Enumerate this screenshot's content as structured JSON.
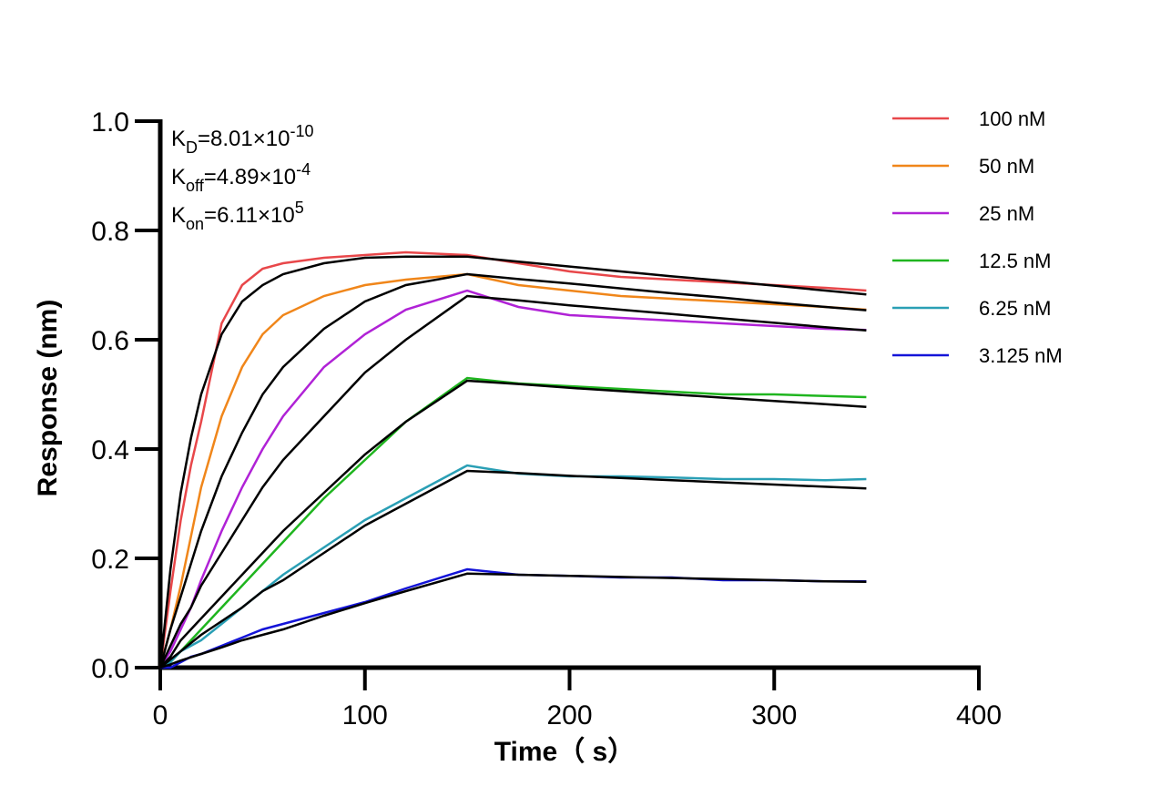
{
  "chart_data": {
    "type": "line",
    "x_label": "Time（ s）",
    "y_label": "Response (nm)",
    "annotations": [
      {
        "base": "K",
        "sub": "D",
        "text": "=8.01×10",
        "sup": "-10"
      },
      {
        "base": "K",
        "sub": "off",
        "text": "=4.89×10",
        "sup": "-4"
      },
      {
        "base": "K",
        "sub": "on",
        "text": "=6.11×10",
        "sup": "5"
      }
    ],
    "xlim": [
      0,
      400
    ],
    "xticks": [
      0,
      100,
      200,
      300,
      400
    ],
    "ylim": [
      0,
      1.0
    ],
    "yticks": [
      {
        "value": 0,
        "label": "0.0"
      },
      0.2,
      0.4,
      0.6,
      0.8,
      {
        "value": 1.0,
        "label": "1.0"
      }
    ],
    "x": [
      0,
      5,
      10,
      15,
      20,
      30,
      40,
      50,
      60,
      80,
      100,
      120,
      150,
      175,
      200,
      225,
      250,
      275,
      300,
      325,
      345
    ],
    "series": [
      {
        "name": "100 nM",
        "color": "#e8474a",
        "values": [
          0,
          0.14,
          0.27,
          0.37,
          0.45,
          0.63,
          0.7,
          0.73,
          0.74,
          0.75,
          0.755,
          0.76,
          0.755,
          0.74,
          0.725,
          0.715,
          0.71,
          0.705,
          0.7,
          0.695,
          0.69
        ]
      },
      {
        "name": "50 nM",
        "color": "#f0861a",
        "values": [
          0,
          0.07,
          0.15,
          0.24,
          0.33,
          0.46,
          0.55,
          0.61,
          0.645,
          0.68,
          0.7,
          0.71,
          0.72,
          0.7,
          0.69,
          0.68,
          0.675,
          0.67,
          0.665,
          0.66,
          0.655
        ]
      },
      {
        "name": "25 nM",
        "color": "#b022d6",
        "values": [
          0,
          0.03,
          0.07,
          0.11,
          0.16,
          0.25,
          0.33,
          0.4,
          0.46,
          0.55,
          0.61,
          0.655,
          0.69,
          0.66,
          0.645,
          0.64,
          0.635,
          0.63,
          0.625,
          0.62,
          0.618
        ]
      },
      {
        "name": "12.5 nM",
        "color": "#1fb51f",
        "values": [
          0,
          0.01,
          0.03,
          0.05,
          0.07,
          0.11,
          0.15,
          0.19,
          0.23,
          0.31,
          0.38,
          0.45,
          0.53,
          0.52,
          0.515,
          0.51,
          0.505,
          0.5,
          0.5,
          0.497,
          0.495
        ]
      },
      {
        "name": "6.25 nM",
        "color": "#2a9fb5",
        "values": [
          0,
          0.01,
          0.03,
          0.04,
          0.05,
          0.08,
          0.11,
          0.14,
          0.17,
          0.22,
          0.27,
          0.31,
          0.37,
          0.355,
          0.35,
          0.35,
          0.348,
          0.345,
          0.345,
          0.343,
          0.345
        ]
      },
      {
        "name": "3.125 nM",
        "color": "#1414d8",
        "values": [
          0,
          0.0,
          0.01,
          0.02,
          0.025,
          0.04,
          0.055,
          0.07,
          0.08,
          0.1,
          0.12,
          0.145,
          0.18,
          0.17,
          0.168,
          0.165,
          0.165,
          0.16,
          0.16,
          0.158,
          0.158
        ]
      }
    ],
    "fit_series": [
      {
        "color": "#000000",
        "values": [
          0,
          0.18,
          0.32,
          0.42,
          0.5,
          0.61,
          0.67,
          0.7,
          0.72,
          0.74,
          0.75,
          0.752,
          0.752,
          0.743,
          0.734,
          0.725,
          0.716,
          0.708,
          0.699,
          0.69,
          0.683
        ]
      },
      {
        "color": "#000000",
        "values": [
          0,
          0.07,
          0.13,
          0.19,
          0.25,
          0.35,
          0.43,
          0.5,
          0.55,
          0.62,
          0.67,
          0.7,
          0.72,
          0.711,
          0.703,
          0.694,
          0.685,
          0.677,
          0.668,
          0.66,
          0.654
        ]
      },
      {
        "color": "#000000",
        "values": [
          0,
          0.04,
          0.08,
          0.11,
          0.15,
          0.21,
          0.27,
          0.33,
          0.38,
          0.46,
          0.54,
          0.6,
          0.68,
          0.672,
          0.663,
          0.655,
          0.647,
          0.639,
          0.631,
          0.623,
          0.617
        ]
      },
      {
        "color": "#000000",
        "values": [
          0,
          0.02,
          0.05,
          0.07,
          0.09,
          0.13,
          0.17,
          0.21,
          0.25,
          0.32,
          0.39,
          0.45,
          0.525,
          0.519,
          0.512,
          0.506,
          0.5,
          0.494,
          0.488,
          0.482,
          0.477
        ]
      },
      {
        "color": "#000000",
        "values": [
          0,
          0.015,
          0.03,
          0.045,
          0.06,
          0.085,
          0.11,
          0.14,
          0.16,
          0.21,
          0.26,
          0.3,
          0.36,
          0.356,
          0.351,
          0.347,
          0.343,
          0.339,
          0.335,
          0.331,
          0.328
        ]
      },
      {
        "color": "#000000",
        "values": [
          0,
          0.006,
          0.013,
          0.019,
          0.025,
          0.037,
          0.05,
          0.06,
          0.07,
          0.095,
          0.118,
          0.14,
          0.172,
          0.17,
          0.168,
          0.166,
          0.164,
          0.162,
          0.16,
          0.158,
          0.157
        ]
      }
    ]
  }
}
